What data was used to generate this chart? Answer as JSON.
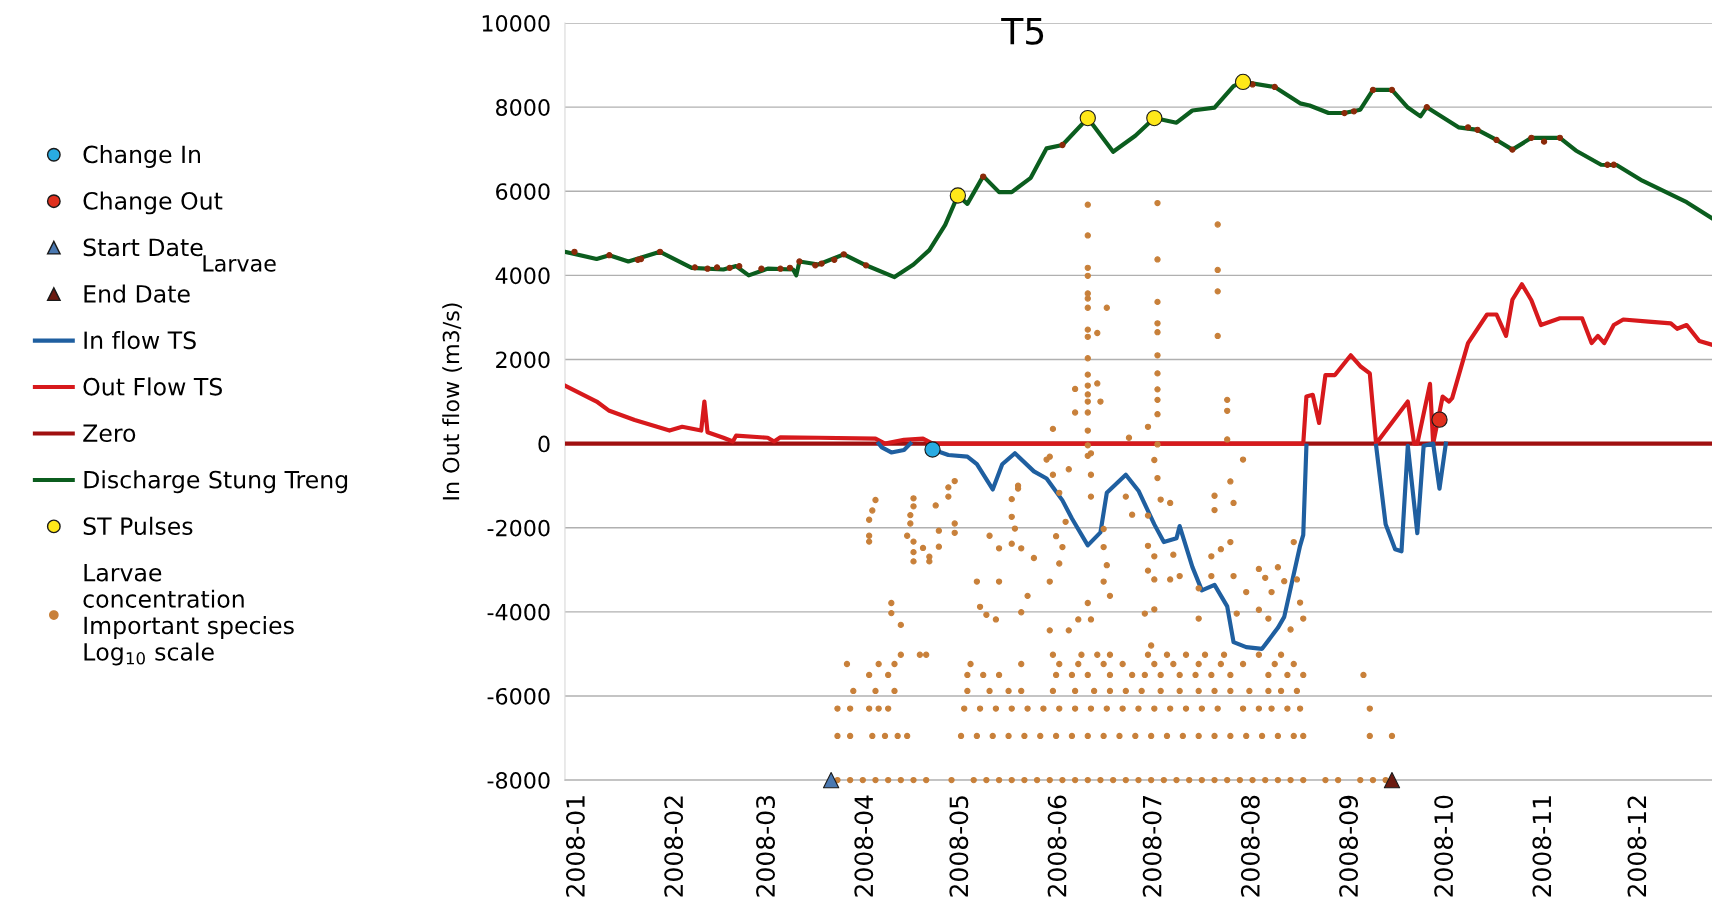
{
  "chart_data": {
    "type": "line",
    "title": "T5",
    "ylabel": "In Out flow (m3/s)",
    "annotations": [
      "Larvae"
    ],
    "xlim": [
      "2007-12-28",
      "2008-12-24"
    ],
    "ylim": [
      -8000,
      10000
    ],
    "xticks": [
      {
        "value": "2008-01-01",
        "label": "2008-01"
      },
      {
        "value": "2008-02-01",
        "label": "2008-02"
      },
      {
        "value": "2008-03-01",
        "label": "2008-03"
      },
      {
        "value": "2008-04-01",
        "label": "2008-04"
      },
      {
        "value": "2008-05-01",
        "label": "2008-05"
      },
      {
        "value": "2008-06-01",
        "label": "2008-06"
      },
      {
        "value": "2008-07-01",
        "label": "2008-07"
      },
      {
        "value": "2008-08-01",
        "label": "2008-08"
      },
      {
        "value": "2008-09-01",
        "label": "2008-09"
      },
      {
        "value": "2008-10-01",
        "label": "2008-10"
      },
      {
        "value": "2008-11-01",
        "label": "2008-11"
      },
      {
        "value": "2008-12-01",
        "label": "2008-12"
      }
    ],
    "yticks": [
      -8000,
      -6000,
      -4000,
      -2000,
      0,
      2000,
      4000,
      6000,
      8000,
      10000
    ],
    "grid": "y",
    "legend": "left",
    "series": [
      {
        "type": "scatter",
        "name": "Change In",
        "color": "#29abe2",
        "marker": "circle",
        "x": [
          "2008-04-22"
        ],
        "values": [
          -140
        ]
      },
      {
        "type": "scatter",
        "name": "Change Out",
        "color": "#e0301e",
        "marker": "circle",
        "x": [
          "2008-09-29"
        ],
        "values": [
          570
        ]
      },
      {
        "type": "scatter",
        "name": "Start Date",
        "color": "#4a78b0",
        "marker": "triangle",
        "x": [
          "2008-03-21"
        ],
        "values": [
          -8000
        ]
      },
      {
        "type": "scatter",
        "name": "End Date",
        "color": "#6b1a10",
        "marker": "triangle",
        "x": [
          "2008-09-14"
        ],
        "values": [
          -8000
        ]
      },
      {
        "type": "line",
        "name": "In flow TS",
        "color": "#1f5fa0",
        "x": [
          "2008-04-05",
          "2008-04-06",
          "2008-04-09",
          "2008-04-13",
          "2008-04-15",
          "2008-04-16",
          "2008-04-22",
          "2008-04-27",
          "2008-05-03",
          "2008-05-06",
          "2008-05-11",
          "2008-05-14",
          "2008-05-18",
          "2008-05-24",
          "2008-05-28",
          "2008-06-02",
          "2008-06-05",
          "2008-06-10",
          "2008-06-14",
          "2008-06-16",
          "2008-06-22",
          "2008-06-26",
          "2008-07-01",
          "2008-07-04",
          "2008-07-08",
          "2008-07-09",
          "2008-07-13",
          "2008-07-16",
          "2008-07-20",
          "2008-07-24",
          "2008-07-26",
          "2008-07-30",
          "2008-08-04",
          "2008-08-09",
          "2008-08-11",
          "2008-08-16",
          "2008-08-17",
          "2008-08-18",
          "2008-08-19",
          "2008-09-09",
          "2008-09-12",
          "2008-09-15",
          "2008-09-17",
          "2008-09-19",
          "2008-09-22",
          "2008-09-24",
          "2008-09-27",
          "2008-09-29",
          "2008-10-01"
        ],
        "values": [
          0,
          -90,
          -210,
          -150,
          0,
          null,
          -140,
          -270,
          -310,
          -490,
          -1090,
          -490,
          -230,
          -660,
          -830,
          -1350,
          -1780,
          -2420,
          -2110,
          -1170,
          -740,
          -1120,
          -1920,
          -2340,
          -2250,
          -1960,
          -2930,
          -3490,
          -3360,
          -3870,
          -4720,
          -4840,
          -4880,
          -4380,
          -4120,
          -2430,
          -2170,
          -50,
          null,
          -50,
          -1920,
          -2510,
          -2560,
          -50,
          -2130,
          -50,
          0,
          -1070,
          0
        ]
      },
      {
        "type": "line",
        "name": "Out Flow TS",
        "color": "#d7191c",
        "x": [
          "2007-12-28",
          "2008-01-07",
          "2008-01-11",
          "2008-01-19",
          "2008-01-30",
          "2008-02-03",
          "2008-02-09",
          "2008-02-10",
          "2008-02-11",
          "2008-02-16",
          "2008-02-19",
          "2008-02-20",
          "2008-03-01",
          "2008-03-03",
          "2008-03-05",
          "2008-03-17",
          "2008-04-04",
          "2008-04-07",
          "2008-04-13",
          "2008-04-19",
          "2008-04-22",
          "2008-08-17",
          "2008-08-18",
          "2008-08-20",
          "2008-08-22",
          "2008-08-24",
          "2008-08-27",
          "2008-09-01",
          "2008-09-04",
          "2008-09-07",
          "2008-09-09",
          "2008-09-19",
          "2008-09-21",
          "2008-09-22",
          "2008-09-26",
          "2008-09-27",
          "2008-09-30",
          "2008-10-02",
          "2008-10-03",
          "2008-10-08",
          "2008-10-14",
          "2008-10-17",
          "2008-10-20",
          "2008-10-22",
          "2008-10-25",
          "2008-10-28",
          "2008-10-31",
          "2008-11-06",
          "2008-11-13",
          "2008-11-16",
          "2008-11-18",
          "2008-11-20",
          "2008-11-23",
          "2008-11-26",
          "2008-12-04",
          "2008-12-11",
          "2008-12-13",
          "2008-12-16",
          "2008-12-20",
          "2008-12-24"
        ],
        "values": [
          1380,
          1000,
          780,
          560,
          310,
          400,
          310,
          1000,
          270,
          140,
          50,
          190,
          140,
          50,
          150,
          140,
          120,
          0,
          90,
          120,
          0,
          0,
          1120,
          1160,
          490,
          1630,
          1630,
          2100,
          1840,
          1670,
          0,
          1000,
          0,
          0,
          1420,
          0,
          1120,
          1000,
          1080,
          2390,
          3070,
          3070,
          2560,
          3420,
          3790,
          3410,
          2820,
          2980,
          2980,
          2390,
          2560,
          2390,
          2820,
          2950,
          2900,
          2860,
          2730,
          2820,
          2440,
          2350
        ]
      },
      {
        "type": "line",
        "name": "Zero",
        "color": "#a01010",
        "x": [
          "2007-12-28",
          "2008-12-24"
        ],
        "values": [
          0,
          0
        ]
      },
      {
        "type": "line",
        "name": "Discharge Stung Treng",
        "color": "#0b5d1e",
        "x": [
          "2007-12-28",
          "2008-01-07",
          "2008-01-11",
          "2008-01-17",
          "2008-01-27",
          "2008-02-06",
          "2008-02-16",
          "2008-02-20",
          "2008-02-24",
          "2008-03-01",
          "2008-03-09",
          "2008-03-10",
          "2008-03-11",
          "2008-03-17",
          "2008-03-25",
          "2008-04-01",
          "2008-04-10",
          "2008-04-16",
          "2008-04-21",
          "2008-04-26",
          "2008-04-30",
          "2008-05-03",
          "2008-05-08",
          "2008-05-13",
          "2008-05-17",
          "2008-05-23",
          "2008-05-28",
          "2008-06-02",
          "2008-06-10",
          "2008-06-18",
          "2008-06-25",
          "2008-07-01",
          "2008-07-08",
          "2008-07-13",
          "2008-07-20",
          "2008-07-26",
          "2008-07-29",
          "2008-08-08",
          "2008-08-16",
          "2008-08-19",
          "2008-08-25",
          "2008-08-30",
          "2008-09-04",
          "2008-09-08",
          "2008-09-14",
          "2008-09-19",
          "2008-09-23",
          "2008-09-25",
          "2008-10-05",
          "2008-10-11",
          "2008-10-17",
          "2008-10-22",
          "2008-10-28",
          "2008-11-06",
          "2008-11-11",
          "2008-11-19",
          "2008-11-24",
          "2008-12-02",
          "2008-12-16",
          "2008-12-24"
        ],
        "values": [
          4560,
          4390,
          4480,
          4330,
          4560,
          4180,
          4140,
          4220,
          4000,
          4160,
          4140,
          4000,
          4330,
          4260,
          4500,
          4240,
          3960,
          4260,
          4600,
          5200,
          5900,
          5700,
          6360,
          5980,
          5980,
          6320,
          7020,
          7100,
          7740,
          6940,
          7320,
          7740,
          7630,
          7920,
          7990,
          8500,
          8600,
          8480,
          8090,
          8040,
          7860,
          7860,
          7940,
          8410,
          8410,
          7990,
          7780,
          8000,
          7520,
          7460,
          7220,
          6990,
          7270,
          7270,
          6970,
          6630,
          6620,
          6250,
          5740,
          5360
        ]
      },
      {
        "type": "scatter",
        "name": "ST Pulses",
        "color": "#ffe81a",
        "marker": "circle",
        "x": [
          "2008-04-30",
          "2008-06-10",
          "2008-07-01",
          "2008-07-29"
        ],
        "values": [
          5900,
          7740,
          7740,
          8600
        ]
      },
      {
        "type": "scatter",
        "name": "Larvae\nconcentration\nImportant species\nLog$_{10}$ scale",
        "color": "#c8803a",
        "marker": "circle",
        "x": [
          "2008-03-23",
          "2008-03-27",
          "2008-03-31",
          "2008-04-04",
          "2008-04-08",
          "2008-04-12",
          "2008-04-16",
          "2008-04-20",
          "2008-04-28",
          "2008-05-05",
          "2008-05-09",
          "2008-05-13",
          "2008-05-17",
          "2008-05-21",
          "2008-05-25",
          "2008-05-29",
          "2008-06-02",
          "2008-06-06",
          "2008-06-10",
          "2008-06-14",
          "2008-06-18",
          "2008-06-22",
          "2008-06-26",
          "2008-06-30",
          "2008-07-04",
          "2008-07-08",
          "2008-07-12",
          "2008-07-16",
          "2008-07-20",
          "2008-07-24",
          "2008-07-28",
          "2008-08-01",
          "2008-08-05",
          "2008-08-09",
          "2008-08-13",
          "2008-08-17",
          "2008-08-24",
          "2008-08-28",
          "2008-09-04",
          "2008-09-08",
          "2008-09-12"
        ],
        "values": [
          -8000,
          -8000,
          -8000,
          -8000,
          -8000,
          -8000,
          -8000,
          -8000,
          -8000,
          -8000,
          -8000,
          -8000,
          -8000,
          -8000,
          -8000,
          -8000,
          -8000,
          -8000,
          -8000,
          -8000,
          -8000,
          -8000,
          -8000,
          -8000,
          -8000,
          -8000,
          -8000,
          -8000,
          -8000,
          -8000,
          -8000,
          -8000,
          -8000,
          -8000,
          -8000,
          -8000,
          -8000,
          -8000,
          -8000,
          -8000,
          -8000
        ]
      },
      {
        "type": "scatter",
        "color": "#c8803a",
        "marker": "circle",
        "x": [
          "2008-03-23",
          "2008-03-27",
          "2008-04-03",
          "2008-04-07",
          "2008-04-11",
          "2008-04-14",
          "2008-05-01",
          "2008-05-06",
          "2008-05-11",
          "2008-05-16",
          "2008-05-21",
          "2008-05-26",
          "2008-05-31",
          "2008-06-05",
          "2008-06-10",
          "2008-06-15",
          "2008-06-20",
          "2008-06-25",
          "2008-06-30",
          "2008-07-05",
          "2008-07-10",
          "2008-07-15",
          "2008-07-20",
          "2008-07-25",
          "2008-07-30",
          "2008-08-04",
          "2008-08-09",
          "2008-08-14",
          "2008-08-17",
          "2008-09-07",
          "2008-09-14"
        ],
        "values": [
          -6950,
          -6950,
          -6950,
          -6950,
          -6950,
          -6950,
          -6950,
          -6950,
          -6950,
          -6950,
          -6950,
          -6950,
          -6950,
          -6950,
          -6950,
          -6950,
          -6950,
          -6950,
          -6950,
          -6950,
          -6950,
          -6950,
          -6950,
          -6950,
          -6950,
          -6950,
          -6950,
          -6950,
          -6950,
          -6950,
          -6950
        ]
      },
      {
        "type": "scatter",
        "color": "#c8803a",
        "marker": "circle",
        "x": [
          "2008-03-23",
          "2008-03-27",
          "2008-04-02",
          "2008-04-05",
          "2008-04-08",
          "2008-05-02",
          "2008-05-07",
          "2008-05-12",
          "2008-05-17",
          "2008-05-22",
          "2008-05-27",
          "2008-06-01",
          "2008-06-06",
          "2008-06-11",
          "2008-06-16",
          "2008-06-21",
          "2008-06-26",
          "2008-07-01",
          "2008-07-06",
          "2008-07-11",
          "2008-07-16",
          "2008-07-21",
          "2008-07-29",
          "2008-08-03",
          "2008-08-07",
          "2008-08-12",
          "2008-08-16",
          "2008-09-07"
        ],
        "values": [
          -6300,
          -6300,
          -6300,
          -6300,
          -6300,
          -6300,
          -6300,
          -6300,
          -6300,
          -6300,
          -6300,
          -6300,
          -6300,
          -6300,
          -6300,
          -6300,
          -6300,
          -6300,
          -6300,
          -6300,
          -6300,
          -6300,
          -6300,
          -6300,
          -6300,
          -6300,
          -6300,
          -6300
        ]
      },
      {
        "type": "scatter",
        "color": "#c8803a",
        "marker": "circle",
        "x": [
          "2008-03-28",
          "2008-04-04",
          "2008-04-10",
          "2008-05-03",
          "2008-05-10",
          "2008-05-16",
          "2008-05-20",
          "2008-05-30",
          "2008-06-06",
          "2008-06-12",
          "2008-06-17",
          "2008-06-22",
          "2008-06-27",
          "2008-07-03",
          "2008-07-09",
          "2008-07-15",
          "2008-07-20",
          "2008-07-25",
          "2008-07-31",
          "2008-08-06",
          "2008-08-10",
          "2008-08-15"
        ],
        "values": [
          -5880,
          -5880,
          -5880,
          -5880,
          -5880,
          -5880,
          -5880,
          -5880,
          -5880,
          -5880,
          -5880,
          -5880,
          -5880,
          -5880,
          -5880,
          -5880,
          -5880,
          -5880,
          -5880,
          -5880,
          -5880,
          -5880
        ]
      },
      {
        "type": "scatter",
        "color": "#c8803a",
        "marker": "circle",
        "x": [
          "2008-04-02",
          "2008-04-08",
          "2008-05-03",
          "2008-05-08",
          "2008-05-13",
          "2008-05-31",
          "2008-06-05",
          "2008-06-10",
          "2008-06-17",
          "2008-06-24",
          "2008-06-28",
          "2008-07-03",
          "2008-07-09",
          "2008-07-14",
          "2008-07-19",
          "2008-07-25",
          "2008-08-06",
          "2008-08-12",
          "2008-08-17",
          "2008-09-05"
        ],
        "values": [
          -5500,
          -5500,
          -5500,
          -5500,
          -5500,
          -5500,
          -5500,
          -5500,
          -5500,
          -5500,
          -5500,
          -5500,
          -5500,
          -5500,
          -5500,
          -5500,
          -5500,
          -5500,
          -5500,
          -5500
        ]
      },
      {
        "type": "scatter",
        "color": "#c8803a",
        "marker": "circle",
        "x": [
          "2008-03-26",
          "2008-04-05",
          "2008-04-10",
          "2008-05-04",
          "2008-05-20",
          "2008-06-01",
          "2008-06-07",
          "2008-06-15",
          "2008-06-21",
          "2008-07-01",
          "2008-07-07",
          "2008-07-15",
          "2008-07-22",
          "2008-07-29",
          "2008-08-08",
          "2008-08-14"
        ],
        "values": [
          -5240,
          -5240,
          -5240,
          -5240,
          -5240,
          -5240,
          -5240,
          -5240,
          -5240,
          -5240,
          -5240,
          -5240,
          -5240,
          -5240,
          -5240,
          -5240
        ]
      },
      {
        "type": "scatter",
        "color": "#c8803a",
        "marker": "circle",
        "x": [
          "2008-04-12",
          "2008-04-18",
          "2008-04-20",
          "2008-05-30",
          "2008-06-08",
          "2008-06-13",
          "2008-06-17",
          "2008-06-29",
          "2008-07-05",
          "2008-07-11",
          "2008-07-17",
          "2008-07-23",
          "2008-08-03",
          "2008-08-10"
        ],
        "values": [
          -5020,
          -5020,
          -5020,
          -5020,
          -5020,
          -5020,
          -5020,
          -5020,
          -5020,
          -5020,
          -5020,
          -5020,
          -5020,
          -5020
        ]
      },
      {
        "type": "scatter",
        "color": "#c8803a",
        "marker": "circle",
        "x": [
          "2008-04-04",
          "2008-04-03",
          "2008-04-02",
          "2008-04-02",
          "2008-04-02",
          "2008-04-09",
          "2008-04-09",
          "2008-04-12",
          "2008-04-16",
          "2008-04-16",
          "2008-04-15",
          "2008-04-15",
          "2008-04-14",
          "2008-04-16",
          "2008-04-16",
          "2008-04-16",
          "2008-04-21",
          "2008-04-21",
          "2008-04-23",
          "2008-04-24",
          "2008-04-27",
          "2008-04-27",
          "2008-04-29",
          "2008-04-29",
          "2008-04-29",
          "2008-04-24",
          "2008-04-19"
        ],
        "values": [
          -1340,
          -1590,
          -1810,
          -2190,
          -2330,
          -3790,
          -4030,
          -4310,
          -1300,
          -1490,
          -1700,
          -1900,
          -2190,
          -2330,
          -2580,
          -2800,
          -2690,
          -2800,
          -1470,
          -2070,
          -1260,
          -1040,
          -890,
          -1900,
          -2120,
          -2450,
          -2480
        ]
      },
      {
        "type": "scatter",
        "color": "#c8803a",
        "marker": "circle",
        "x": [
          "2008-05-07",
          "2008-05-09",
          "2008-05-10",
          "2008-05-13",
          "2008-05-17",
          "2008-05-19",
          "2008-05-17",
          "2008-05-18",
          "2008-05-20",
          "2008-05-22",
          "2008-05-29",
          "2008-05-13",
          "2008-05-06",
          "2008-06-01",
          "2008-05-30",
          "2008-06-03",
          "2008-05-31",
          "2008-06-02",
          "2008-06-01",
          "2008-06-04",
          "2008-06-11",
          "2008-06-11",
          "2008-06-11",
          "2008-06-15",
          "2008-06-15",
          "2008-06-16",
          "2008-06-15",
          "2008-06-17",
          "2008-06-10",
          "2008-06-07",
          "2008-06-11",
          "2008-06-04",
          "2008-05-29",
          "2008-05-20",
          "2008-05-12",
          "2008-06-24",
          "2008-06-22",
          "2008-05-17",
          "2008-05-24",
          "2008-05-19",
          "2008-05-29"
        ],
        "values": [
          -3880,
          -4070,
          -2190,
          -2490,
          -1320,
          -1070,
          -1740,
          -2020,
          -2490,
          -3620,
          -3280,
          -3280,
          -3280,
          -1170,
          -740,
          -1860,
          -2200,
          -2460,
          -2850,
          -610,
          -230,
          -740,
          -1260,
          -2030,
          -2460,
          -2890,
          -3280,
          -3620,
          -3790,
          -4180,
          -4180,
          -4440,
          -4440,
          -4010,
          -4180,
          -1690,
          -1260,
          -2380,
          -2720,
          -1000,
          -310
        ]
      },
      {
        "type": "scatter",
        "color": "#c8803a",
        "marker": "circle",
        "x": [
          "2008-06-10",
          "2008-06-10",
          "2008-06-10",
          "2008-06-10",
          "2008-06-10",
          "2008-06-10",
          "2008-06-10",
          "2008-06-10",
          "2008-06-10",
          "2008-06-10",
          "2008-06-10",
          "2008-06-10",
          "2008-06-10",
          "2008-06-10",
          "2008-06-10",
          "2008-06-10",
          "2008-06-10",
          "2008-06-10",
          "2008-06-16",
          "2008-06-13",
          "2008-06-13",
          "2008-06-14",
          "2008-06-06",
          "2008-06-06",
          "2008-05-30",
          "2008-05-28",
          "2008-06-23",
          "2008-07-02",
          "2008-07-02",
          "2008-07-02",
          "2008-07-02",
          "2008-07-02",
          "2008-07-02",
          "2008-07-02",
          "2008-07-02",
          "2008-07-02",
          "2008-07-02",
          "2008-06-29",
          "2008-07-02",
          "2008-07-21",
          "2008-07-21",
          "2008-07-21",
          "2008-07-21",
          "2008-07-24",
          "2008-07-24",
          "2008-07-24",
          "2008-07-29"
        ],
        "values": [
          5680,
          4950,
          4180,
          3990,
          3570,
          3450,
          3230,
          2710,
          2540,
          2030,
          1640,
          1380,
          1170,
          1000,
          740,
          310,
          -40,
          -290,
          3230,
          2630,
          1430,
          1000,
          1300,
          740,
          350,
          -380,
          140,
          5720,
          4380,
          3370,
          2860,
          2650,
          2100,
          1670,
          1290,
          1040,
          700,
          400,
          -20,
          5210,
          4130,
          3620,
          2560,
          1040,
          780,
          100,
          -380
        ]
      },
      {
        "type": "scatter",
        "color": "#c8803a",
        "marker": "circle",
        "x": [
          "2008-07-01",
          "2008-07-02",
          "2008-07-03",
          "2008-07-06",
          "2008-06-29",
          "2008-06-29",
          "2008-07-01",
          "2008-07-07",
          "2008-06-29",
          "2008-07-01",
          "2008-07-06",
          "2008-07-09",
          "2008-07-15",
          "2008-07-19",
          "2008-07-20",
          "2008-07-20",
          "2008-07-25",
          "2008-07-26",
          "2008-07-25",
          "2008-07-22",
          "2008-07-19",
          "2008-07-30",
          "2008-07-26",
          "2008-08-03",
          "2008-08-05",
          "2008-08-07",
          "2008-08-09",
          "2008-08-11",
          "2008-08-14",
          "2008-08-15",
          "2008-08-16",
          "2008-08-17",
          "2008-08-03",
          "2008-08-06",
          "2008-08-13",
          "2008-06-28",
          "2008-07-01",
          "2008-07-15",
          "2008-06-30",
          "2008-07-27"
        ],
        "values": [
          -390,
          -820,
          -1330,
          -1410,
          -1710,
          -2430,
          -2680,
          -2640,
          -3020,
          -3230,
          -3230,
          -3150,
          -3440,
          -3150,
          -1240,
          -1580,
          -900,
          -1410,
          -2340,
          -2510,
          -2680,
          -3530,
          -3150,
          -2980,
          -3190,
          -3530,
          -2940,
          -3270,
          -2340,
          -3230,
          -3780,
          -4160,
          -3950,
          -4160,
          -4420,
          -4040,
          -3940,
          -4160,
          -4800,
          -4040
        ]
      },
      {
        "type": "scatter",
        "color": "#8b2a0a",
        "marker": "circle",
        "x": [
          "2007-12-31",
          "2008-01-11",
          "2008-01-20",
          "2008-01-21",
          "2008-01-27",
          "2008-02-07",
          "2008-02-11",
          "2008-02-14",
          "2008-02-18",
          "2008-02-21",
          "2008-02-28",
          "2008-03-05",
          "2008-03-08",
          "2008-03-11",
          "2008-03-16",
          "2008-03-18",
          "2008-03-22",
          "2008-03-25",
          "2008-04-01",
          "2008-05-08",
          "2008-06-02",
          "2008-08-01",
          "2008-08-08",
          "2008-08-30",
          "2008-09-02",
          "2008-09-08",
          "2008-09-14",
          "2008-09-25",
          "2008-10-08",
          "2008-10-11",
          "2008-10-17",
          "2008-10-22",
          "2008-10-28",
          "2008-11-01",
          "2008-11-06",
          "2008-11-21",
          "2008-11-23"
        ],
        "values": [
          4560,
          4480,
          4370,
          4390,
          4560,
          4190,
          4160,
          4190,
          4180,
          4220,
          4160,
          4160,
          4180,
          4330,
          4240,
          4280,
          4370,
          4500,
          4240,
          6350,
          7100,
          8540,
          8480,
          7860,
          7900,
          8410,
          8410,
          8000,
          7520,
          7460,
          7220,
          6990,
          7270,
          7180,
          7270,
          6630,
          6630
        ]
      }
    ]
  }
}
